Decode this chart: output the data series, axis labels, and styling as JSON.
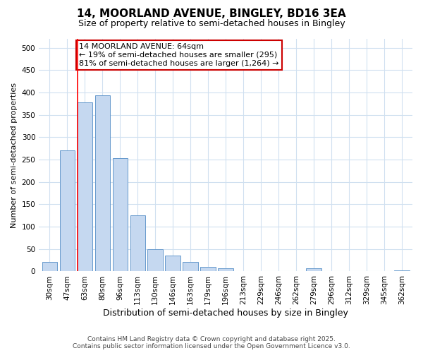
{
  "title": "14, MOORLAND AVENUE, BINGLEY, BD16 3EA",
  "subtitle": "Size of property relative to semi-detached houses in Bingley",
  "xlabel": "Distribution of semi-detached houses by size in Bingley",
  "ylabel": "Number of semi-detached properties",
  "bar_labels": [
    "30sqm",
    "47sqm",
    "63sqm",
    "80sqm",
    "96sqm",
    "113sqm",
    "130sqm",
    "146sqm",
    "163sqm",
    "179sqm",
    "196sqm",
    "213sqm",
    "229sqm",
    "246sqm",
    "262sqm",
    "279sqm",
    "296sqm",
    "312sqm",
    "329sqm",
    "345sqm",
    "362sqm"
  ],
  "bar_values": [
    22,
    270,
    378,
    394,
    253,
    126,
    50,
    35,
    22,
    10,
    7,
    0,
    0,
    0,
    0,
    7,
    0,
    0,
    0,
    0,
    3
  ],
  "bar_color": "#c5d8f0",
  "bar_edge_color": "#6699cc",
  "background_color": "#ffffff",
  "grid_color": "#d0e0f0",
  "annotation_title": "14 MOORLAND AVENUE: 64sqm",
  "annotation_line1": "← 19% of semi-detached houses are smaller (295)",
  "annotation_line2": "81% of semi-detached houses are larger (1,264) →",
  "annotation_box_color": "#ffffff",
  "annotation_box_edge_color": "#cc0000",
  "footer_line1": "Contains HM Land Registry data © Crown copyright and database right 2025.",
  "footer_line2": "Contains public sector information licensed under the Open Government Licence v3.0.",
  "ylim": [
    0,
    520
  ],
  "yticks": [
    0,
    50,
    100,
    150,
    200,
    250,
    300,
    350,
    400,
    450,
    500
  ],
  "red_line_bar_index": 2,
  "title_fontsize": 11,
  "subtitle_fontsize": 9,
  "tick_fontsize": 7.5,
  "ylabel_fontsize": 8,
  "xlabel_fontsize": 9,
  "footer_fontsize": 6.5,
  "annotation_fontsize": 8
}
